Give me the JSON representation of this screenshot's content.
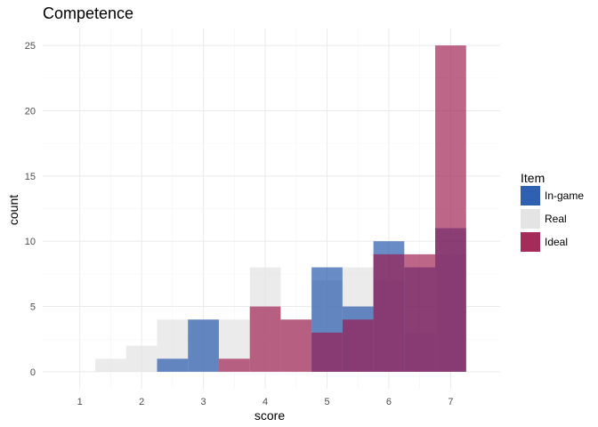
{
  "chart_data": {
    "type": "bar",
    "title": "Competence",
    "xlabel": "score",
    "ylabel": "count",
    "xlim": [
      0.4,
      7.8
    ],
    "ylim": [
      -1.3,
      26.3
    ],
    "bin_width": 0.5,
    "x_ticks": [
      1,
      2,
      3,
      4,
      5,
      6,
      7
    ],
    "y_ticks": [
      0,
      5,
      10,
      15,
      20,
      25
    ],
    "grid": true,
    "legend": {
      "title": "Item",
      "position": "right"
    },
    "series": [
      {
        "name": "Real",
        "color": "#e3e3e3",
        "opacity": 0.7,
        "bins": [
          {
            "x": 1.5,
            "count": 1
          },
          {
            "x": 2.0,
            "count": 2
          },
          {
            "x": 2.5,
            "count": 4
          },
          {
            "x": 3.0,
            "count": 4
          },
          {
            "x": 3.5,
            "count": 4
          },
          {
            "x": 4.0,
            "count": 8
          },
          {
            "x": 4.5,
            "count": 4
          },
          {
            "x": 5.0,
            "count": 7
          },
          {
            "x": 5.5,
            "count": 8
          },
          {
            "x": 6.0,
            "count": 7
          },
          {
            "x": 6.5,
            "count": 3
          },
          {
            "x": 7.0,
            "count": 9
          }
        ]
      },
      {
        "name": "In-game",
        "color": "#1a4fa8",
        "opacity": 0.65,
        "bins": [
          {
            "x": 2.5,
            "count": 1
          },
          {
            "x": 3.0,
            "count": 4
          },
          {
            "x": 5.0,
            "count": 8
          },
          {
            "x": 5.5,
            "count": 5
          },
          {
            "x": 6.0,
            "count": 10
          },
          {
            "x": 6.5,
            "count": 8
          },
          {
            "x": 7.0,
            "count": 11
          }
        ]
      },
      {
        "name": "Ideal",
        "color": "#9b1448",
        "opacity": 0.65,
        "bins": [
          {
            "x": 3.5,
            "count": 1
          },
          {
            "x": 4.0,
            "count": 5
          },
          {
            "x": 4.5,
            "count": 4
          },
          {
            "x": 5.0,
            "count": 3
          },
          {
            "x": 5.5,
            "count": 4
          },
          {
            "x": 6.0,
            "count": 9
          },
          {
            "x": 6.5,
            "count": 9
          },
          {
            "x": 7.0,
            "count": 25
          }
        ]
      }
    ],
    "legend_order": [
      "In-game",
      "Real",
      "Ideal"
    ]
  }
}
